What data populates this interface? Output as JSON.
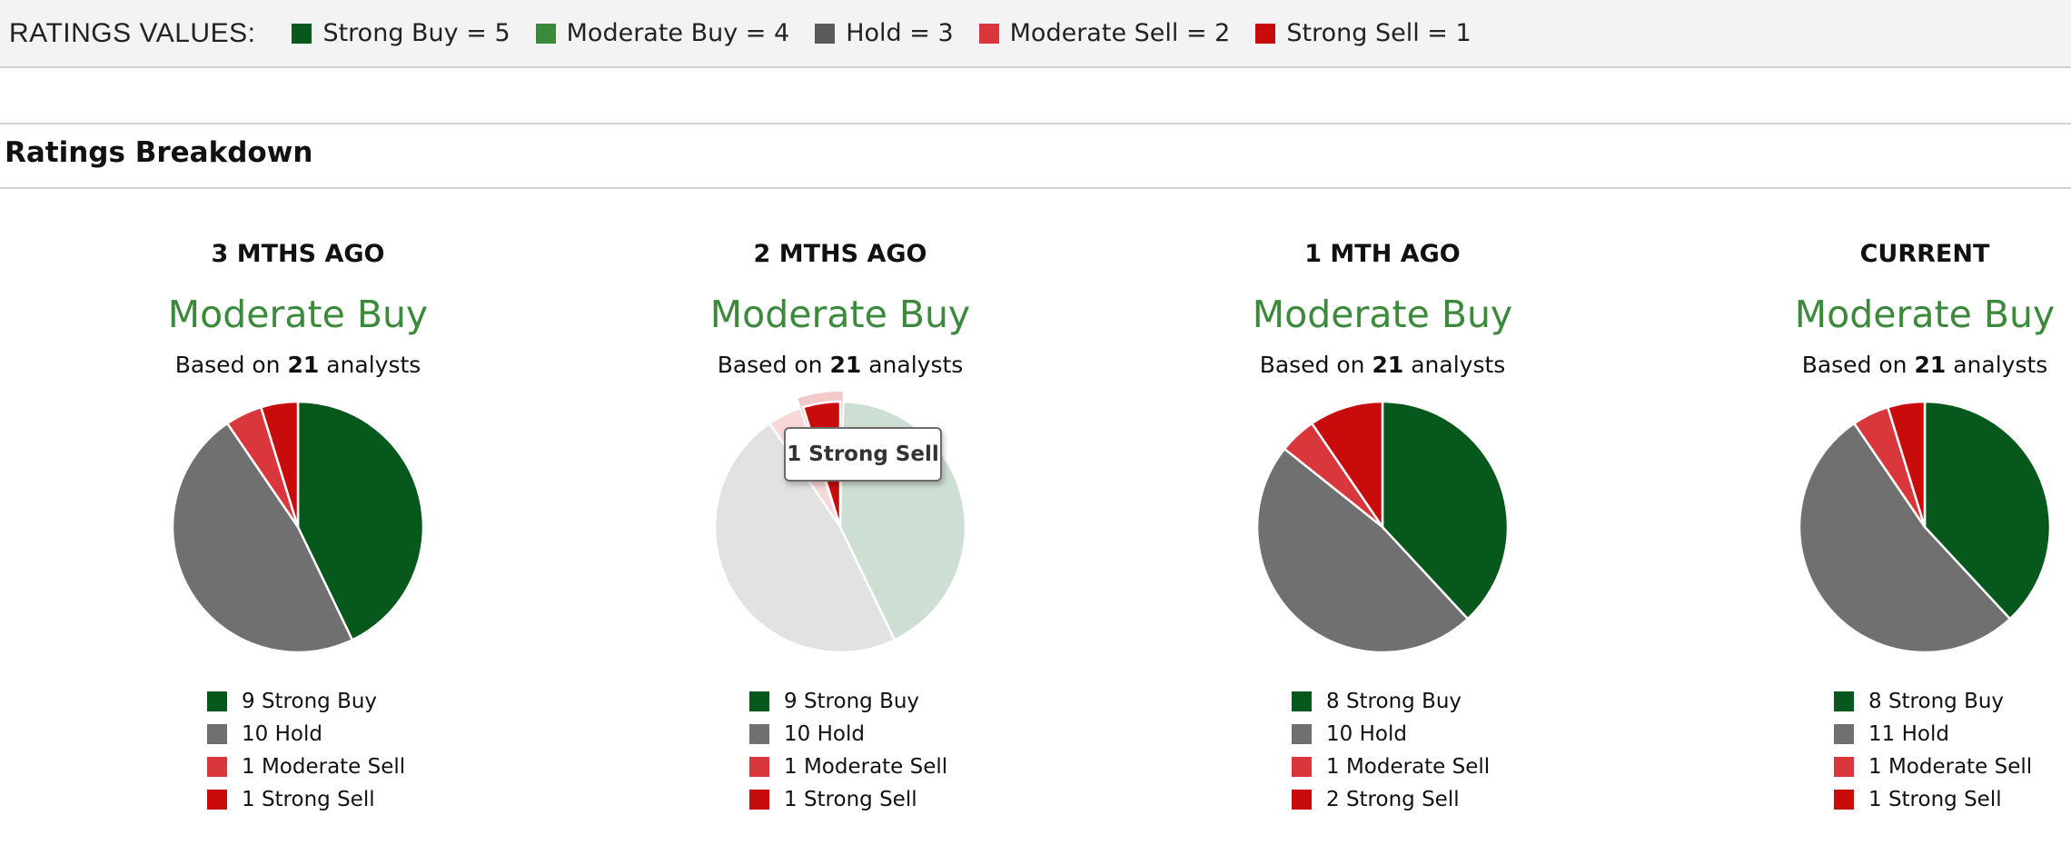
{
  "ratings_legend": {
    "title": "RATINGS VALUES:",
    "items": [
      {
        "label": "Strong Buy = 5",
        "color": "#07581c"
      },
      {
        "label": "Moderate Buy = 4",
        "color": "#3b8a3b"
      },
      {
        "label": "Hold = 3",
        "color": "#5a5a5a"
      },
      {
        "label": "Moderate Sell = 2",
        "color": "#d9373c"
      },
      {
        "label": "Strong Sell = 1",
        "color": "#c80c0c"
      }
    ]
  },
  "section": {
    "title": "Ratings Breakdown"
  },
  "colors": {
    "strong_buy": "#07581c",
    "hold": "#707070",
    "moderate_sell": "#d9373c",
    "strong_sell": "#c80c0c",
    "consensus": "#3b8a3b"
  },
  "panels": [
    {
      "heading": "3 MTHS AGO",
      "consensus": "Moderate Buy",
      "basis_prefix": "Based on",
      "basis_count": "21",
      "basis_suffix": "analysts",
      "legend": [
        "9 Strong Buy",
        "10 Hold",
        "1 Moderate Sell",
        "1 Strong Sell"
      ]
    },
    {
      "heading": "2 MTHS AGO",
      "consensus": "Moderate Buy",
      "basis_prefix": "Based on",
      "basis_count": "21",
      "basis_suffix": "analysts",
      "legend": [
        "9 Strong Buy",
        "10 Hold",
        "1 Moderate Sell",
        "1 Strong Sell"
      ],
      "tooltip": "1 Strong Sell"
    },
    {
      "heading": "1 MTH AGO",
      "consensus": "Moderate Buy",
      "basis_prefix": "Based on",
      "basis_count": "21",
      "basis_suffix": "analysts",
      "legend": [
        "8 Strong Buy",
        "10 Hold",
        "1 Moderate Sell",
        "2 Strong Sell"
      ]
    },
    {
      "heading": "CURRENT",
      "consensus": "Moderate Buy",
      "basis_prefix": "Based on",
      "basis_count": "21",
      "basis_suffix": "analysts",
      "legend": [
        "8 Strong Buy",
        "11 Hold",
        "1 Moderate Sell",
        "1 Strong Sell"
      ]
    }
  ],
  "chart_data": [
    {
      "type": "pie",
      "title": "3 MTHS AGO",
      "categories": [
        "Strong Buy",
        "Hold",
        "Moderate Sell",
        "Strong Sell"
      ],
      "values": [
        9,
        10,
        1,
        1
      ]
    },
    {
      "type": "pie",
      "title": "2 MTHS AGO",
      "categories": [
        "Strong Buy",
        "Hold",
        "Moderate Sell",
        "Strong Sell"
      ],
      "values": [
        9,
        10,
        1,
        1
      ],
      "highlighted": "Strong Sell"
    },
    {
      "type": "pie",
      "title": "1 MTH AGO",
      "categories": [
        "Strong Buy",
        "Hold",
        "Moderate Sell",
        "Strong Sell"
      ],
      "values": [
        8,
        10,
        1,
        2
      ]
    },
    {
      "type": "pie",
      "title": "CURRENT",
      "categories": [
        "Strong Buy",
        "Hold",
        "Moderate Sell",
        "Strong Sell"
      ],
      "values": [
        8,
        11,
        1,
        1
      ]
    }
  ]
}
